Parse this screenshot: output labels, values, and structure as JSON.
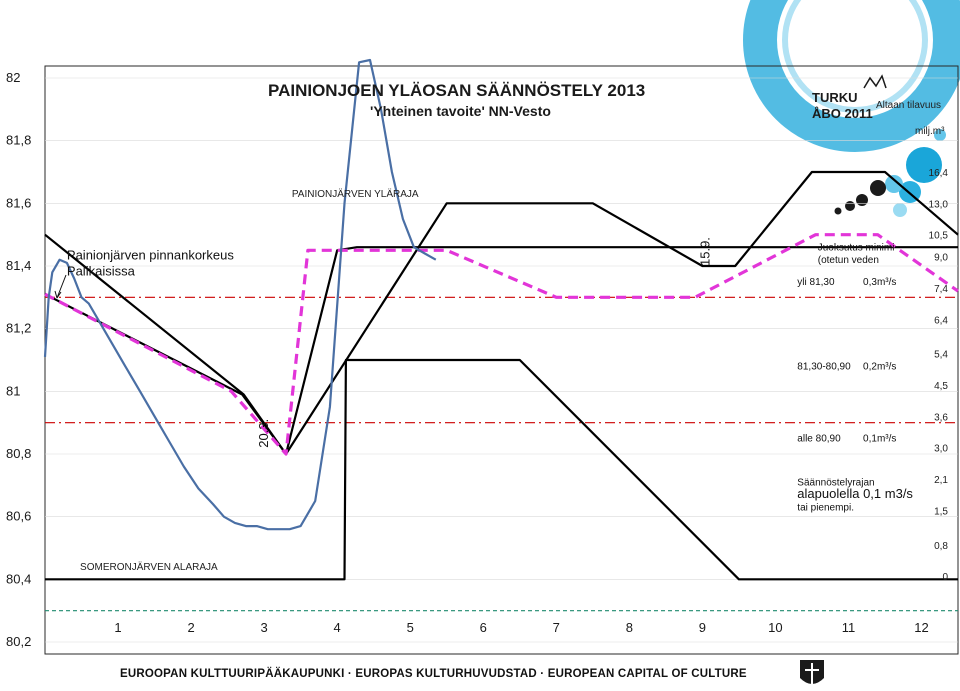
{
  "chart_data": {
    "type": "line",
    "title": "PAINIONJOEN YLÄOSAN SÄÄNNÖSTELY 2013",
    "subtitle": "'Yhteinen tavoite' NN-Vesto",
    "xlabel": "",
    "ylabel": "",
    "xlim": [
      0,
      12.5
    ],
    "ylim": [
      80.2,
      82.0
    ],
    "y_ticks": [
      "82",
      "81,8",
      "81,6",
      "81,4",
      "81,2",
      "81",
      "80,8",
      "80,6",
      "80,4",
      "80,2"
    ],
    "y_tick_values": [
      82.0,
      81.8,
      81.6,
      81.4,
      81.2,
      81.0,
      80.8,
      80.6,
      80.4,
      80.2
    ],
    "x_ticks": [
      {
        "label": "1",
        "x": 1.0
      },
      {
        "label": "2",
        "x": 2.0
      },
      {
        "label": "3",
        "x": 3.0
      },
      {
        "label": "4",
        "x": 4.0
      },
      {
        "label": "5",
        "x": 5.0
      },
      {
        "label": "6",
        "x": 6.0
      },
      {
        "label": "7",
        "x": 7.0
      },
      {
        "label": "8",
        "x": 8.0
      },
      {
        "label": "9",
        "x": 9.0
      },
      {
        "label": "10",
        "x": 10.0
      },
      {
        "label": "11",
        "x": 11.0
      },
      {
        "label": "12",
        "x": 12.0
      }
    ],
    "volume_axis_label": "Altaan tilavuus",
    "volume_axis_unit": "milj.m³",
    "volume_ticks": [
      {
        "label": "16,4",
        "y": 81.7
      },
      {
        "label": "13,0",
        "y": 81.6
      },
      {
        "label": "10,5",
        "y": 81.5
      },
      {
        "label": "9,0",
        "y": 81.43
      },
      {
        "label": "7,4",
        "y": 81.33
      },
      {
        "label": "6,4",
        "y": 81.23
      },
      {
        "label": "5,4",
        "y": 81.12
      },
      {
        "label": "4,5",
        "y": 81.02
      },
      {
        "label": "3,6",
        "y": 80.92
      },
      {
        "label": "3,0",
        "y": 80.82
      },
      {
        "label": "2,1",
        "y": 80.72
      },
      {
        "label": "1,5",
        "y": 80.62
      },
      {
        "label": "0,8",
        "y": 80.51
      },
      {
        "label": "0",
        "y": 80.41
      }
    ],
    "grid": true,
    "series": [
      {
        "name": "PAINIONJÄRVEN YLÄRAJA",
        "color": "#000000",
        "style": "solid",
        "x": [
          0.0,
          2.72,
          3.3,
          5.5,
          7.5,
          9.0,
          9.45,
          10.5,
          11.5,
          12.5
        ],
        "y": [
          81.5,
          80.99,
          80.8,
          81.6,
          81.6,
          81.4,
          81.4,
          81.7,
          81.7,
          81.5
        ]
      },
      {
        "name": "",
        "color": "#000000",
        "style": "solid",
        "x": [
          0.0,
          2.7,
          3.3,
          4.0,
          4.27,
          6.5,
          9.3,
          12.5
        ],
        "y": [
          81.31,
          80.99,
          80.8,
          81.45,
          81.46,
          81.46,
          81.46,
          81.46
        ]
      },
      {
        "name": "SOMERONJÄRVEN ALARAJA",
        "color": "#000000",
        "style": "solid",
        "x": [
          0.0,
          4.1,
          4.12,
          6.5,
          9.5,
          12.5
        ],
        "y": [
          80.4,
          80.4,
          81.1,
          81.1,
          80.4,
          80.4
        ]
      },
      {
        "name": "",
        "color": "#e235d8",
        "style": "dashed",
        "x": [
          0.0,
          2.55,
          3.3,
          3.6,
          5.5,
          7.0,
          8.9,
          10.55,
          11.4,
          12.5
        ],
        "y": [
          81.31,
          81.0,
          80.8,
          81.45,
          81.45,
          81.3,
          81.3,
          81.5,
          81.5,
          81.32
        ]
      },
      {
        "name": "Painionjärven pinnankorkeus Palikaisissa",
        "color": "#4a6fa5",
        "style": "solid",
        "x": [
          0.0,
          0.05,
          0.1,
          0.2,
          0.3,
          0.4,
          0.5,
          0.6,
          0.75,
          0.9,
          1.1,
          1.3,
          1.5,
          1.7,
          1.9,
          2.1,
          2.3,
          2.45,
          2.6,
          2.75,
          2.9,
          3.05,
          3.2,
          3.35,
          3.5,
          3.7,
          3.9,
          4.1,
          4.3,
          4.45,
          4.6,
          4.75,
          4.9,
          5.05,
          5.2,
          5.35
        ],
        "y": [
          81.11,
          81.3,
          81.38,
          81.42,
          81.41,
          81.36,
          81.3,
          81.28,
          81.22,
          81.16,
          81.08,
          81.0,
          80.92,
          80.84,
          80.76,
          80.69,
          80.64,
          80.6,
          80.58,
          80.57,
          80.57,
          80.56,
          80.56,
          80.56,
          80.57,
          80.65,
          80.95,
          81.6,
          82.05,
          82.1,
          81.9,
          81.7,
          81.55,
          81.46,
          81.44,
          81.42
        ]
      }
    ],
    "reference_lines": [
      {
        "y": 81.3,
        "color": "#cc0000",
        "style": "dashdot"
      },
      {
        "y": 80.9,
        "color": "#cc0000",
        "style": "dashdot"
      },
      {
        "y": 80.3,
        "color": "#1e8a6e",
        "style": "dashed"
      }
    ],
    "annotations": [
      {
        "text": "PAINIONJÄRVEN YLÄRAJA",
        "x": 3.38,
        "y": 81.62
      },
      {
        "text": "SOMERONJÄRVEN ALARAJA",
        "x": 0.48,
        "y": 80.43
      },
      {
        "text": "Painionjärven pinnankorkeus",
        "x": 0.3,
        "y": 81.42
      },
      {
        "text": "Palikaisissa",
        "x": 0.3,
        "y": 81.37
      },
      {
        "text": "20.3.",
        "x": 3.05,
        "y": 80.82,
        "rotate": true
      },
      {
        "text": "15.9.",
        "x": 9.1,
        "y": 81.4,
        "rotate": true
      },
      {
        "text": "Juoksutus minimi",
        "x": 10.58,
        "y": 81.45
      },
      {
        "text": "(otetun veden",
        "x": 10.58,
        "y": 81.41
      },
      {
        "text": "yli 81,30",
        "x": 10.3,
        "y": 81.34
      },
      {
        "text": "0,3m³/s",
        "x": 11.2,
        "y": 81.34
      },
      {
        "text": "81,30-80,90",
        "x": 10.3,
        "y": 81.07
      },
      {
        "text": "0,2m³/s",
        "x": 11.2,
        "y": 81.07
      },
      {
        "text": "alle  80,90",
        "x": 10.3,
        "y": 80.84
      },
      {
        "text": "0,1m³/s",
        "x": 11.2,
        "y": 80.84
      },
      {
        "text": "Säännöstelyrajan",
        "x": 10.3,
        "y": 80.7
      },
      {
        "text": "alapuolella  0,1 m3/s",
        "x": 10.3,
        "y": 80.66
      },
      {
        "text": "tai pienempi.",
        "x": 10.3,
        "y": 80.62
      }
    ]
  },
  "branding": {
    "logo_line1": "TURKU",
    "logo_line2": "ÅBO 2011",
    "logo_colors": [
      "#1aa6d9",
      "#0b7fb8",
      "#63c6ea"
    ],
    "footer": "EUROOPAN KULTTUURIPÄÄKAUPUNKI · EUROPAS KULTURHUVUDSTAD · EUROPEAN CAPITAL OF CULTURE"
  }
}
